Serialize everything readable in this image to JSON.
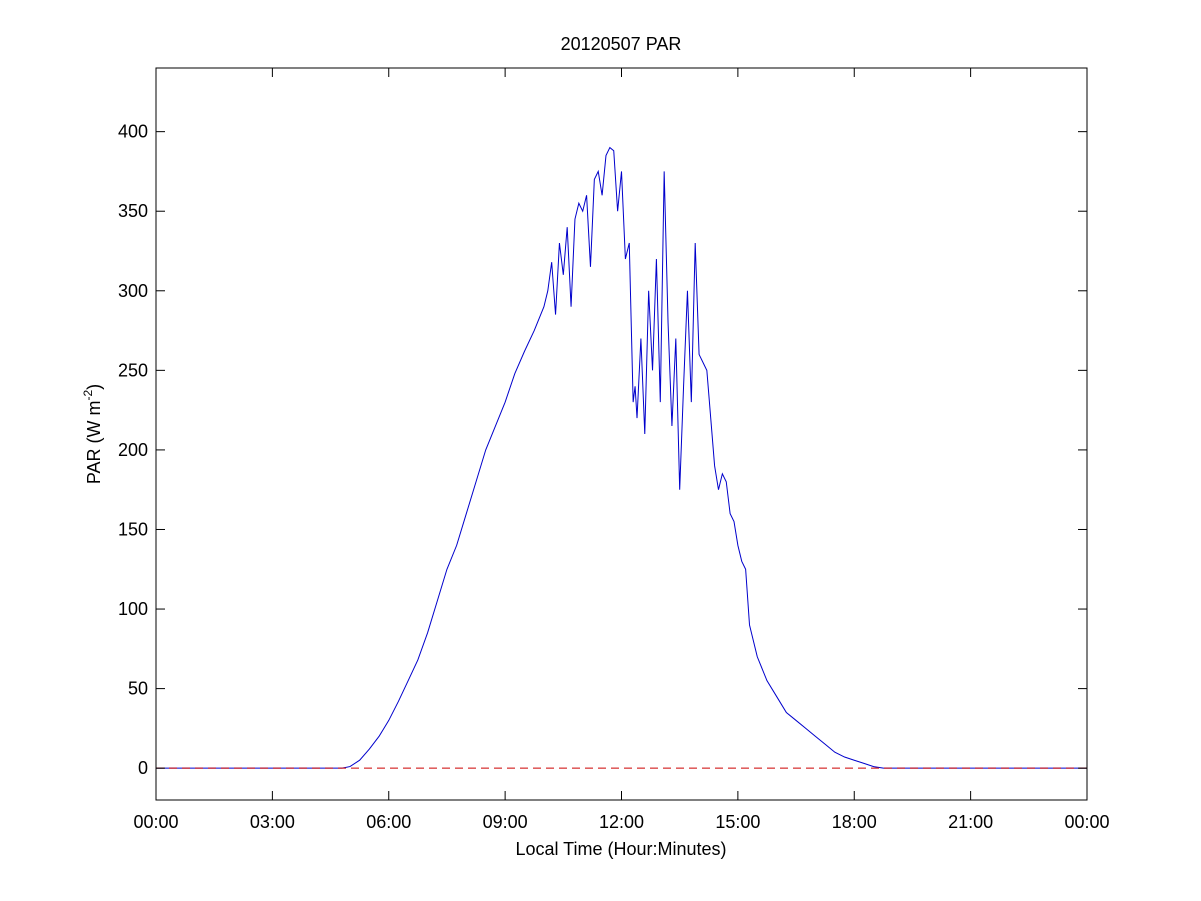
{
  "chart_data": {
    "type": "line",
    "title": "20120507 PAR",
    "xlabel": "Local Time (Hour:Minutes)",
    "ylabel_main": "PAR (W m",
    "ylabel_sup": "-2",
    "ylabel_close": ")",
    "xlim": [
      0,
      24
    ],
    "ylim": [
      -20,
      440
    ],
    "xticks": [
      0,
      3,
      6,
      9,
      12,
      15,
      18,
      21,
      24
    ],
    "xtick_labels": [
      "00:00",
      "03:00",
      "06:00",
      "09:00",
      "12:00",
      "15:00",
      "18:00",
      "21:00",
      "00:00"
    ],
    "yticks": [
      0,
      50,
      100,
      150,
      200,
      250,
      300,
      350,
      400
    ],
    "ytick_labels": [
      "0",
      "50",
      "100",
      "150",
      "200",
      "250",
      "300",
      "350",
      "400"
    ],
    "grid": false,
    "series": [
      {
        "color": "#0000cc",
        "x": [
          0,
          4.8,
          5.0,
          5.25,
          5.5,
          5.75,
          6.0,
          6.25,
          6.5,
          6.75,
          7.0,
          7.25,
          7.5,
          7.75,
          8.0,
          8.25,
          8.5,
          8.75,
          9.0,
          9.25,
          9.5,
          9.75,
          10.0,
          10.1,
          10.2,
          10.3,
          10.4,
          10.5,
          10.6,
          10.7,
          10.8,
          10.9,
          11.0,
          11.1,
          11.2,
          11.3,
          11.4,
          11.5,
          11.6,
          11.7,
          11.8,
          11.9,
          12.0,
          12.1,
          12.2,
          12.3,
          12.35,
          12.4,
          12.5,
          12.6,
          12.7,
          12.8,
          12.9,
          13.0,
          13.1,
          13.2,
          13.3,
          13.4,
          13.5,
          13.6,
          13.7,
          13.8,
          13.9,
          14.0,
          14.1,
          14.2,
          14.3,
          14.4,
          14.5,
          14.6,
          14.7,
          14.8,
          14.9,
          15.0,
          15.1,
          15.2,
          15.3,
          15.5,
          15.75,
          16.0,
          16.25,
          16.5,
          16.75,
          17.0,
          17.25,
          17.5,
          17.75,
          18.0,
          18.25,
          18.5,
          18.75,
          19.0,
          24
        ],
        "y": [
          0,
          0,
          1,
          5,
          12,
          20,
          30,
          42,
          55,
          68,
          85,
          105,
          125,
          140,
          160,
          180,
          200,
          215,
          230,
          248,
          262,
          275,
          290,
          300,
          318,
          285,
          330,
          310,
          340,
          290,
          345,
          355,
          350,
          360,
          315,
          370,
          375,
          360,
          385,
          390,
          388,
          350,
          375,
          320,
          330,
          230,
          240,
          220,
          270,
          210,
          300,
          250,
          320,
          230,
          375,
          280,
          215,
          270,
          175,
          240,
          300,
          230,
          330,
          260,
          255,
          250,
          220,
          190,
          175,
          185,
          180,
          160,
          155,
          140,
          130,
          125,
          90,
          70,
          55,
          45,
          35,
          30,
          25,
          20,
          15,
          10,
          7,
          5,
          3,
          1,
          0,
          0,
          0
        ]
      },
      {
        "color": "#cc0000",
        "dashed": true,
        "x": [
          0,
          24
        ],
        "y": [
          0,
          0
        ]
      }
    ]
  }
}
